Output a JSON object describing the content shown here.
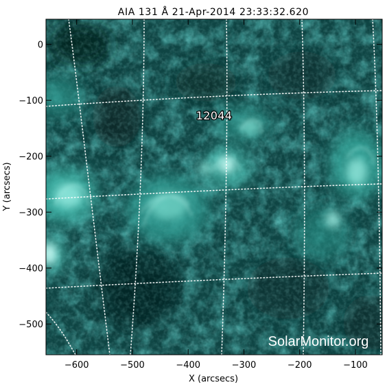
{
  "title": "AIA 131 Å 21-Apr-2014 23:33:32.620",
  "active_region": "12044",
  "watermark": "SolarMonitor.org",
  "colors": {
    "background": "#ffffff",
    "sun_base": "#0d3a3a",
    "sun_bright": "#bff5ee",
    "grid": "#ffffff",
    "text": "#000000"
  },
  "axes": {
    "xlabel": "X (arcsecs)",
    "ylabel": "Y (arcsecs)",
    "xlim": [
      -655,
      -52
    ],
    "ylim": [
      -555,
      45
    ],
    "xticks": [
      {
        "value": -600,
        "label": "−600"
      },
      {
        "value": -500,
        "label": "−500"
      },
      {
        "value": -400,
        "label": "−400"
      },
      {
        "value": -300,
        "label": "−300"
      },
      {
        "value": -200,
        "label": "−200"
      },
      {
        "value": -100,
        "label": "−100"
      }
    ],
    "yticks": [
      {
        "value": 0,
        "label": "0"
      },
      {
        "value": -100,
        "label": "−100"
      },
      {
        "value": -200,
        "label": "−200"
      },
      {
        "value": -300,
        "label": "−300"
      },
      {
        "value": -400,
        "label": "−400"
      },
      {
        "value": -500,
        "label": "−500"
      }
    ]
  }
}
